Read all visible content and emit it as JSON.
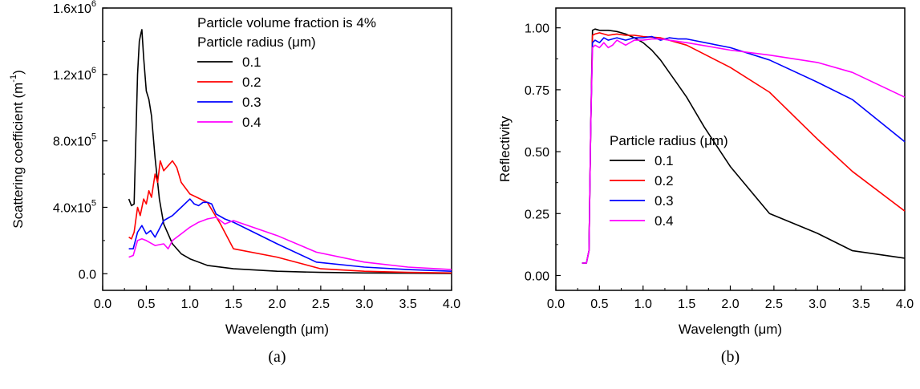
{
  "chart_data": [
    {
      "type": "line",
      "caption": "(a)",
      "xlabel": "Wavelength (μm)",
      "ylabel_main": "Scattering coefficient (m",
      "ylabel_sup": "-1",
      "ylabel_end": ")",
      "xlim": [
        0.0,
        4.0
      ],
      "ylim": [
        -100000,
        1600000
      ],
      "xticks": [
        "0.0",
        "0.5",
        "1.0",
        "1.5",
        "2.0",
        "2.5",
        "3.0",
        "3.5",
        "4.0"
      ],
      "yticks": [
        {
          "value": 0,
          "label": "0.0",
          "sup": ""
        },
        {
          "value": 400000,
          "label": "4.0x10",
          "sup": "5"
        },
        {
          "value": 800000,
          "label": "8.0x10",
          "sup": "5"
        },
        {
          "value": 1200000,
          "label": "1.2x10",
          "sup": "6"
        },
        {
          "value": 1600000,
          "label": "1.6x10",
          "sup": "6"
        }
      ],
      "legend_note": "Particle volume fraction is 4%",
      "legend_title": "Particle radius (μm)",
      "legend_position": "top-right",
      "series": [
        {
          "name": "0.1",
          "color": "#000000",
          "x": [
            0.3,
            0.33,
            0.36,
            0.38,
            0.4,
            0.42,
            0.44,
            0.45,
            0.47,
            0.5,
            0.53,
            0.56,
            0.6,
            0.65,
            0.7,
            0.8,
            0.9,
            1.0,
            1.2,
            1.5,
            2.0,
            2.5,
            3.0,
            4.0
          ],
          "y": [
            450000,
            410000,
            420000,
            800000,
            1200000,
            1400000,
            1450000,
            1470000,
            1300000,
            1100000,
            1050000,
            950000,
            700000,
            450000,
            300000,
            180000,
            120000,
            90000,
            50000,
            30000,
            15000,
            8000,
            5000,
            2000
          ]
        },
        {
          "name": "0.2",
          "color": "#ff0000",
          "x": [
            0.3,
            0.33,
            0.36,
            0.4,
            0.43,
            0.47,
            0.5,
            0.53,
            0.56,
            0.6,
            0.63,
            0.66,
            0.7,
            0.75,
            0.8,
            0.85,
            0.9,
            1.0,
            1.2,
            1.35,
            1.5,
            2.0,
            2.5,
            3.0,
            3.5,
            4.0
          ],
          "y": [
            220000,
            210000,
            250000,
            400000,
            350000,
            450000,
            420000,
            500000,
            460000,
            600000,
            550000,
            680000,
            620000,
            650000,
            680000,
            640000,
            550000,
            480000,
            430000,
            300000,
            150000,
            100000,
            30000,
            15000,
            8000,
            5000
          ]
        },
        {
          "name": "0.3",
          "color": "#0000ff",
          "x": [
            0.3,
            0.35,
            0.4,
            0.45,
            0.5,
            0.55,
            0.6,
            0.7,
            0.8,
            0.9,
            1.0,
            1.05,
            1.1,
            1.15,
            1.2,
            1.25,
            1.3,
            1.4,
            1.5,
            2.0,
            2.45,
            3.0,
            3.5,
            4.0
          ],
          "y": [
            150000,
            150000,
            250000,
            290000,
            240000,
            260000,
            220000,
            320000,
            350000,
            400000,
            450000,
            420000,
            410000,
            430000,
            430000,
            420000,
            360000,
            330000,
            310000,
            180000,
            70000,
            40000,
            25000,
            15000
          ]
        },
        {
          "name": "0.4",
          "color": "#ff00ff",
          "x": [
            0.3,
            0.35,
            0.4,
            0.45,
            0.5,
            0.6,
            0.7,
            0.75,
            0.8,
            0.9,
            1.0,
            1.1,
            1.2,
            1.3,
            1.4,
            1.5,
            2.0,
            2.45,
            3.0,
            3.5,
            4.0
          ],
          "y": [
            100000,
            110000,
            200000,
            210000,
            200000,
            170000,
            180000,
            150000,
            200000,
            240000,
            280000,
            310000,
            330000,
            340000,
            300000,
            320000,
            230000,
            130000,
            70000,
            40000,
            25000
          ]
        }
      ]
    },
    {
      "type": "line",
      "caption": "(b)",
      "xlabel": "Wavelength (μm)",
      "ylabel": "Reflectivity",
      "xlim": [
        0.0,
        4.0
      ],
      "ylim": [
        -0.06,
        1.08
      ],
      "xticks": [
        "0.0",
        "0.5",
        "1.0",
        "1.5",
        "2.0",
        "2.5",
        "3.0",
        "3.5",
        "4.0"
      ],
      "yticks": [
        "0.00",
        "0.25",
        "0.50",
        "0.75",
        "1.00"
      ],
      "legend_title": "Particle radius (μm)",
      "legend_position": "center-left",
      "series": [
        {
          "name": "0.1",
          "color": "#000000",
          "x": [
            0.3,
            0.35,
            0.38,
            0.4,
            0.42,
            0.45,
            0.5,
            0.6,
            0.7,
            0.8,
            0.9,
            1.0,
            1.1,
            1.2,
            1.3,
            1.4,
            1.5,
            1.7,
            2.0,
            2.45,
            3.0,
            3.4,
            4.0
          ],
          "y": [
            0.05,
            0.05,
            0.1,
            0.6,
            0.99,
            0.995,
            0.99,
            0.99,
            0.985,
            0.975,
            0.96,
            0.94,
            0.91,
            0.87,
            0.82,
            0.77,
            0.72,
            0.6,
            0.44,
            0.25,
            0.17,
            0.1,
            0.07
          ]
        },
        {
          "name": "0.2",
          "color": "#ff0000",
          "x": [
            0.3,
            0.35,
            0.38,
            0.4,
            0.42,
            0.45,
            0.5,
            0.6,
            0.7,
            0.8,
            0.9,
            1.0,
            1.2,
            1.5,
            2.0,
            2.45,
            3.0,
            3.4,
            4.0
          ],
          "y": [
            0.05,
            0.05,
            0.1,
            0.6,
            0.97,
            0.975,
            0.98,
            0.97,
            0.975,
            0.97,
            0.97,
            0.965,
            0.96,
            0.93,
            0.84,
            0.74,
            0.55,
            0.42,
            0.26
          ]
        },
        {
          "name": "0.3",
          "color": "#0000ff",
          "x": [
            0.3,
            0.35,
            0.38,
            0.4,
            0.42,
            0.45,
            0.5,
            0.55,
            0.6,
            0.7,
            0.8,
            0.9,
            1.0,
            1.1,
            1.2,
            1.3,
            1.4,
            1.5,
            2.0,
            2.45,
            3.0,
            3.4,
            4.0
          ],
          "y": [
            0.05,
            0.05,
            0.1,
            0.6,
            0.94,
            0.95,
            0.94,
            0.96,
            0.95,
            0.96,
            0.95,
            0.96,
            0.96,
            0.965,
            0.95,
            0.96,
            0.955,
            0.955,
            0.92,
            0.87,
            0.78,
            0.71,
            0.54
          ]
        },
        {
          "name": "0.4",
          "color": "#ff00ff",
          "x": [
            0.3,
            0.35,
            0.38,
            0.4,
            0.42,
            0.45,
            0.5,
            0.55,
            0.6,
            0.65,
            0.7,
            0.8,
            0.9,
            1.0,
            1.1,
            1.2,
            1.5,
            2.0,
            2.45,
            3.0,
            3.4,
            4.0
          ],
          "y": [
            0.05,
            0.05,
            0.1,
            0.6,
            0.92,
            0.93,
            0.92,
            0.94,
            0.92,
            0.93,
            0.95,
            0.93,
            0.95,
            0.95,
            0.955,
            0.955,
            0.94,
            0.91,
            0.89,
            0.86,
            0.82,
            0.72
          ]
        }
      ]
    }
  ]
}
